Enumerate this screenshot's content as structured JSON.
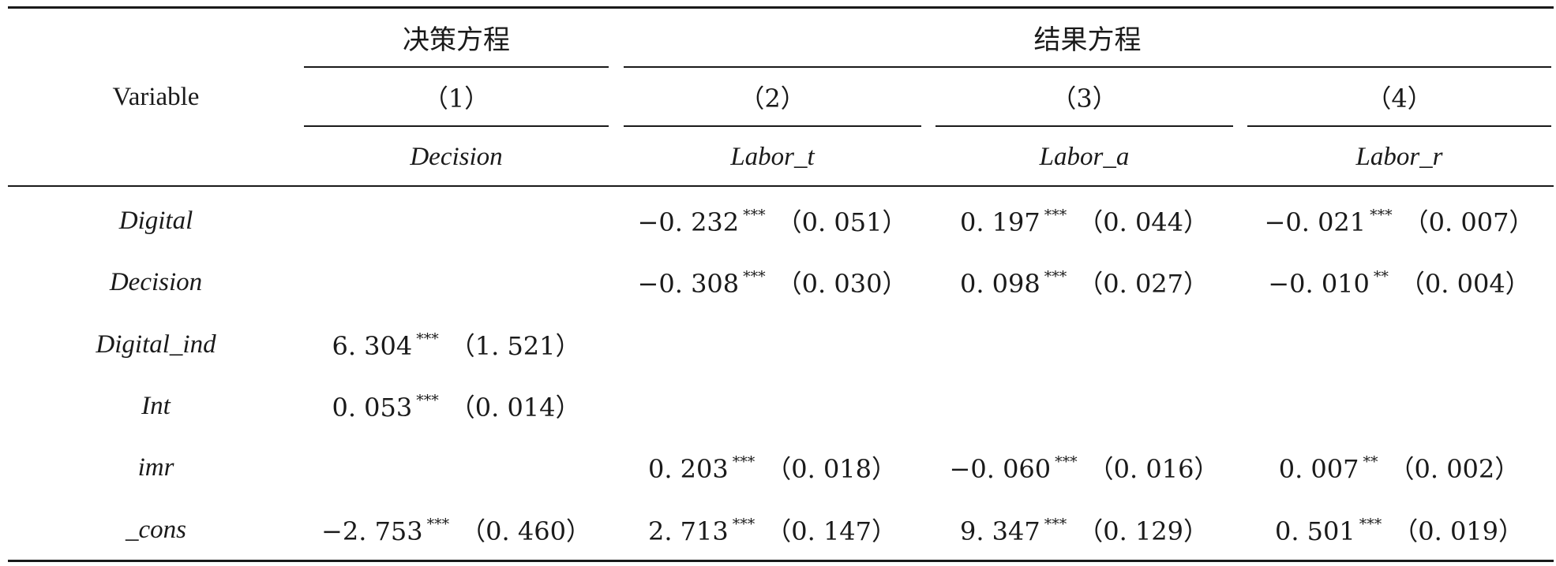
{
  "table": {
    "header": {
      "variable": "Variable",
      "group_decision": "决策方程",
      "group_outcome": "结果方程",
      "col_numbers": [
        "（1）",
        "（2）",
        "（3）",
        "（4）"
      ],
      "col_names": [
        "Decision",
        "Labor_t",
        "Labor_a",
        "Labor_r"
      ]
    },
    "rows": [
      {
        "name": "Digital",
        "cells": [
          null,
          {
            "coef": "−0. 232",
            "stars": "***",
            "se": "（0. 051）"
          },
          {
            "coef": "0. 197",
            "stars": "***",
            "se": "（0. 044）"
          },
          {
            "coef": "−0. 021",
            "stars": "***",
            "se": "（0. 007）"
          }
        ]
      },
      {
        "name": "Decision",
        "cells": [
          null,
          {
            "coef": "−0. 308",
            "stars": "***",
            "se": "（0. 030）"
          },
          {
            "coef": "0. 098",
            "stars": "***",
            "se": "（0. 027）"
          },
          {
            "coef": "−0. 010",
            "stars": "**",
            "se": "（0. 004）"
          }
        ]
      },
      {
        "name": "Digital_ind",
        "cells": [
          {
            "coef": "6. 304",
            "stars": "***",
            "se": "（1. 521）"
          },
          null,
          null,
          null
        ]
      },
      {
        "name": "Int",
        "cells": [
          {
            "coef": "0. 053",
            "stars": "***",
            "se": "（0. 014）"
          },
          null,
          null,
          null
        ]
      },
      {
        "name": "imr",
        "cells": [
          null,
          {
            "coef": "0. 203",
            "stars": "***",
            "se": "（0. 018）"
          },
          {
            "coef": "−0. 060",
            "stars": "***",
            "se": "（0. 016）"
          },
          {
            "coef": "0. 007",
            "stars": "**",
            "se": "（0. 002）"
          }
        ]
      },
      {
        "name": "_cons",
        "cells": [
          {
            "coef": "−2. 753",
            "stars": "***",
            "se": "（0. 460）"
          },
          {
            "coef": "2. 713",
            "stars": "***",
            "se": "（0. 147）"
          },
          {
            "coef": "9. 347",
            "stars": "***",
            "se": "（0. 129）"
          },
          {
            "coef": "0. 501",
            "stars": "***",
            "se": "（0. 019）"
          }
        ]
      }
    ]
  }
}
